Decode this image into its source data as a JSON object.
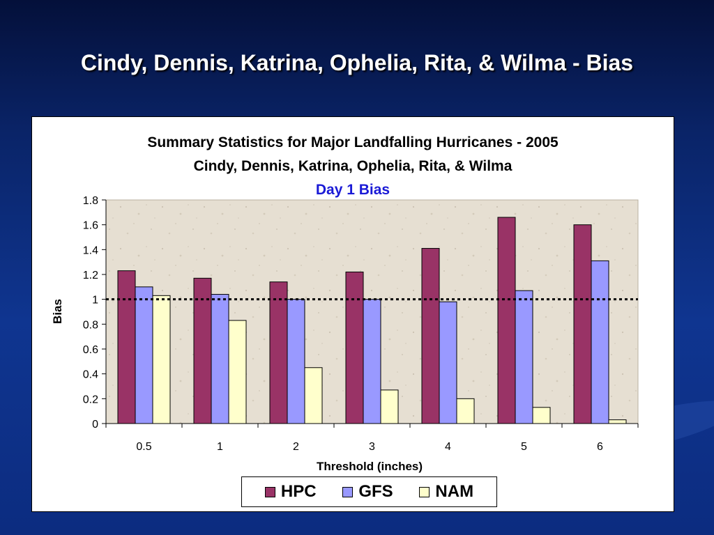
{
  "slide": {
    "title": "Cindy, Dennis, Katrina, Ophelia, Rita, & Wilma - Bias"
  },
  "chart_data": {
    "type": "bar",
    "title": "Summary Statistics for Major Landfalling Hurricanes - 2005",
    "subtitle": "Cindy, Dennis, Katrina, Ophelia, Rita, & Wilma",
    "subtitle2": "Day 1 Bias",
    "xlabel": "Threshold (inches)",
    "ylabel": "Bias",
    "categories": [
      "0.5",
      "1",
      "2",
      "3",
      "4",
      "5",
      "6"
    ],
    "ylim": [
      0,
      1.8
    ],
    "yticks": [
      "0",
      "0.2",
      "0.4",
      "0.6",
      "0.8",
      "1",
      "1.2",
      "1.4",
      "1.6",
      "1.8"
    ],
    "reference_line": 1,
    "grid": false,
    "legend_position": "bottom",
    "series": [
      {
        "name": "HPC",
        "color": "#993366",
        "values": [
          1.23,
          1.17,
          1.14,
          1.22,
          1.41,
          1.66,
          1.6
        ]
      },
      {
        "name": "GFS",
        "color": "#9999ff",
        "values": [
          1.1,
          1.04,
          1.0,
          1.0,
          0.98,
          1.07,
          1.31
        ]
      },
      {
        "name": "NAM",
        "color": "#ffffcc",
        "values": [
          1.03,
          0.83,
          0.45,
          0.27,
          0.2,
          0.13,
          0.03
        ]
      }
    ]
  }
}
